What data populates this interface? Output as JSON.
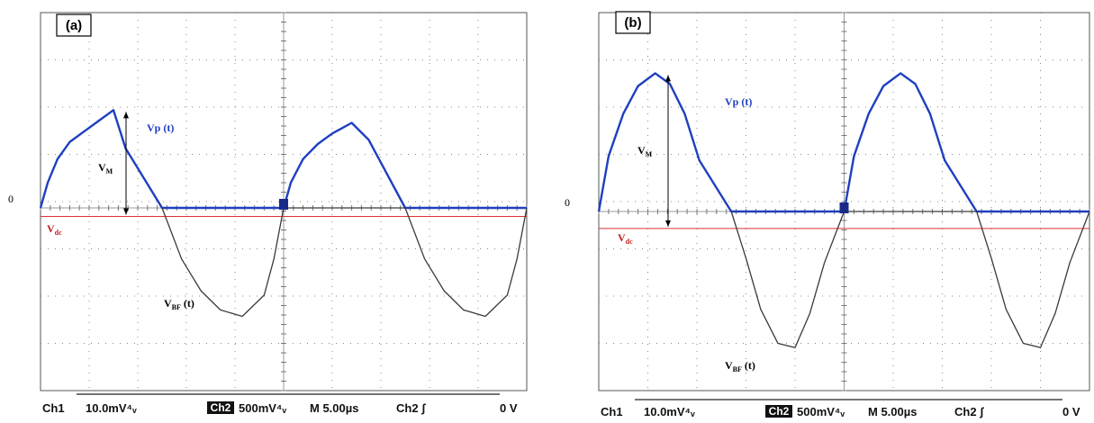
{
  "chart_data": [
    {
      "type": "line",
      "panel_label": "(a)",
      "zero_label": "0",
      "annotations": {
        "vp": "Vp (t)",
        "vm": "V",
        "vm_sub": "M",
        "vdc": "V",
        "vdc_sub": "dc",
        "vbf": "V",
        "vbf_sub": "BF",
        "vbf_tail": " (t)"
      },
      "status": {
        "ch1": "Ch1",
        "ch1_scale": "10.0mV⁴ᵥ",
        "ch2": "Ch2",
        "ch2_scale": "500mV⁴ᵥ",
        "timebase": "M 5.00µs",
        "trigger": "Ch2 ʃ",
        "level": "0 V"
      },
      "x_div": [
        0,
        10
      ],
      "y_div": [
        -4,
        4
      ],
      "vdc_level": -0.2,
      "series": [
        {
          "color": "#1f3fbf",
          "x": [
            0,
            0.3,
            0.7,
            1.2,
            1.8,
            2.4,
            3.0,
            3.5,
            5.0,
            9.9,
            10,
            10.3,
            10.8,
            11.4,
            12.0,
            12.8,
            13.5,
            15.0,
            19.9,
            20
          ],
          "y": [
            0,
            0.6,
            1.15,
            1.55,
            1.8,
            2.05,
            2.3,
            1.4,
            0,
            0,
            0,
            0.6,
            1.15,
            1.5,
            1.75,
            2.0,
            1.6,
            0,
            0,
            0
          ]
        },
        {
          "color": "#3a3a3a",
          "x": [
            5.0,
            5.8,
            6.6,
            7.4,
            8.3,
            9.2,
            9.6,
            10,
            15.0,
            15.8,
            16.6,
            17.4,
            18.3,
            19.2,
            19.6,
            20
          ],
          "y": [
            0,
            -1.2,
            -1.95,
            -2.4,
            -2.55,
            -2.05,
            -1.2,
            0,
            0,
            -1.2,
            -1.95,
            -2.4,
            -2.55,
            -2.05,
            -1.2,
            0
          ]
        }
      ]
    },
    {
      "type": "line",
      "panel_label": "(b)",
      "zero_label": "0",
      "annotations": {
        "vp": "Vp (t)",
        "vm": "V",
        "vm_sub": "M",
        "vdc": "V",
        "vdc_sub": "dc",
        "vbf": "V",
        "vbf_sub": "BF",
        "vbf_tail": " (t)"
      },
      "status": {
        "ch1": "Ch1",
        "ch1_scale": "10.0mV⁴ᵥ",
        "ch2": "Ch2",
        "ch2_scale": "500mV⁴ᵥ",
        "timebase": "M 5.00µs",
        "trigger": "Ch2 ʃ",
        "level": "0 V"
      },
      "x_div": [
        0,
        10
      ],
      "y_div": [
        -4,
        4
      ],
      "vdc_level": -0.4,
      "series": [
        {
          "color": "#1f3fbf",
          "x": [
            0,
            0.4,
            1.0,
            1.6,
            2.3,
            2.9,
            3.5,
            4.1,
            5.4,
            10,
            10.4,
            11.0,
            11.6,
            12.3,
            12.9,
            13.5,
            14.1,
            15.4,
            20.0
          ],
          "y": [
            0,
            1.3,
            2.3,
            2.95,
            3.25,
            3.0,
            2.3,
            1.2,
            0,
            0,
            1.3,
            2.3,
            2.95,
            3.25,
            3.0,
            2.3,
            1.2,
            0,
            0
          ]
        },
        {
          "color": "#3a3a3a",
          "x": [
            5.4,
            6.0,
            6.6,
            7.3,
            8.0,
            8.6,
            9.2,
            10,
            15.4,
            16.0,
            16.6,
            17.3,
            18.0,
            18.6,
            19.2,
            20.0
          ],
          "y": [
            0,
            -1.1,
            -2.3,
            -3.1,
            -3.2,
            -2.4,
            -1.2,
            0,
            0,
            -1.1,
            -2.3,
            -3.1,
            -3.2,
            -2.4,
            -1.2,
            0
          ]
        }
      ]
    }
  ]
}
